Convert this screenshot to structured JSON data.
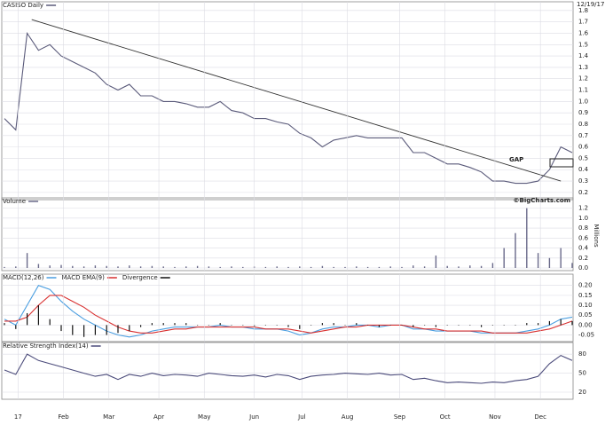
{
  "chart_data": [
    {
      "type": "line",
      "title": "CASISO Daily",
      "date": "12/19/17",
      "annotation": "GAP",
      "color": "#5a5a7a",
      "x": [
        0,
        5,
        10,
        15,
        20,
        25,
        30,
        35,
        40,
        45,
        50,
        55,
        60,
        65,
        70,
        75,
        80,
        85,
        90,
        95,
        100,
        105,
        110,
        115,
        120,
        125,
        130,
        135,
        140,
        145,
        150,
        155,
        160,
        165,
        170,
        175,
        180,
        185,
        190,
        195,
        200,
        205,
        210,
        215,
        220,
        225,
        230,
        235,
        240,
        245,
        250
      ],
      "values": [
        0.85,
        0.75,
        1.6,
        1.45,
        1.5,
        1.4,
        1.35,
        1.3,
        1.25,
        1.15,
        1.1,
        1.15,
        1.05,
        1.05,
        1.0,
        1.0,
        0.98,
        0.95,
        0.95,
        1.0,
        0.92,
        0.9,
        0.85,
        0.85,
        0.82,
        0.8,
        0.72,
        0.68,
        0.6,
        0.66,
        0.68,
        0.7,
        0.68,
        0.68,
        0.68,
        0.68,
        0.55,
        0.55,
        0.5,
        0.45,
        0.45,
        0.42,
        0.38,
        0.3,
        0.3,
        0.28,
        0.28,
        0.3,
        0.4,
        0.6,
        0.55
      ],
      "trendline": {
        "x": [
          12,
          245
        ],
        "values": [
          1.72,
          0.3
        ]
      },
      "xlim": [
        0,
        250
      ],
      "ylim": [
        0.16,
        1.83
      ],
      "yticks": [
        0.2,
        0.3,
        0.4,
        0.5,
        0.6,
        0.7,
        0.8,
        0.9,
        {
          "value": 1,
          "label": "1.0"
        },
        1.1,
        1.2,
        1.3,
        1.4,
        1.5,
        1.6,
        1.7,
        1.8
      ],
      "grid": true
    },
    {
      "type": "bar",
      "title": "Volume",
      "credit": "©BigCharts.com",
      "y_label": "Millions",
      "color": "#6a6a8a",
      "x": [
        0,
        5,
        10,
        15,
        20,
        25,
        30,
        35,
        40,
        45,
        50,
        55,
        60,
        65,
        70,
        75,
        80,
        85,
        90,
        95,
        100,
        105,
        110,
        115,
        120,
        125,
        130,
        135,
        140,
        145,
        150,
        155,
        160,
        165,
        170,
        175,
        180,
        185,
        190,
        195,
        200,
        205,
        210,
        215,
        220,
        225,
        230,
        235,
        240,
        245,
        250
      ],
      "values": [
        0.02,
        0.03,
        0.3,
        0.08,
        0.05,
        0.06,
        0.04,
        0.03,
        0.05,
        0.04,
        0.03,
        0.05,
        0.03,
        0.04,
        0.03,
        0.02,
        0.03,
        0.04,
        0.03,
        0.02,
        0.03,
        0.02,
        0.03,
        0.02,
        0.03,
        0.02,
        0.03,
        0.02,
        0.04,
        0.02,
        0.02,
        0.03,
        0.02,
        0.02,
        0.03,
        0.02,
        0.05,
        0.03,
        0.25,
        0.04,
        0.03,
        0.05,
        0.04,
        0.1,
        0.4,
        0.7,
        1.2,
        0.3,
        0.2,
        0.4,
        0.1
      ],
      "xlim": [
        0,
        250
      ],
      "ylim": [
        0,
        1.3
      ],
      "yticks": [
        {
          "value": 0,
          "label": "0.0"
        },
        0.2,
        0.4,
        0.6,
        0.8,
        {
          "value": 1,
          "label": "1.0"
        },
        1.2
      ],
      "grid": true
    },
    {
      "type": "line",
      "x": [
        0,
        5,
        10,
        15,
        20,
        25,
        30,
        35,
        40,
        45,
        50,
        55,
        60,
        65,
        70,
        75,
        80,
        85,
        90,
        95,
        100,
        105,
        110,
        115,
        120,
        125,
        130,
        135,
        140,
        145,
        150,
        155,
        160,
        165,
        170,
        175,
        180,
        185,
        190,
        195,
        200,
        205,
        210,
        215,
        220,
        225,
        230,
        235,
        240,
        245,
        250
      ],
      "series": [
        {
          "name": "MACD(12,26)",
          "color": "#4a9ee0",
          "values": [
            0.03,
            0.0,
            0.1,
            0.2,
            0.18,
            0.12,
            0.07,
            0.03,
            0.0,
            -0.03,
            -0.05,
            -0.06,
            -0.05,
            -0.03,
            -0.02,
            -0.01,
            -0.01,
            -0.01,
            -0.01,
            0.0,
            -0.01,
            -0.01,
            -0.02,
            -0.02,
            -0.02,
            -0.03,
            -0.05,
            -0.04,
            -0.02,
            -0.01,
            -0.01,
            0.0,
            0.0,
            -0.01,
            0.0,
            0.0,
            -0.02,
            -0.02,
            -0.03,
            -0.03,
            -0.03,
            -0.03,
            -0.04,
            -0.04,
            -0.04,
            -0.04,
            -0.03,
            -0.02,
            0.0,
            0.03,
            0.04
          ]
        },
        {
          "name": "MACD EMA(9)",
          "color": "#d83030",
          "values": [
            0.02,
            0.02,
            0.04,
            0.1,
            0.15,
            0.15,
            0.12,
            0.09,
            0.05,
            0.02,
            -0.01,
            -0.03,
            -0.04,
            -0.04,
            -0.03,
            -0.02,
            -0.02,
            -0.01,
            -0.01,
            -0.01,
            -0.01,
            -0.01,
            -0.01,
            -0.02,
            -0.02,
            -0.02,
            -0.03,
            -0.04,
            -0.03,
            -0.02,
            -0.01,
            -0.01,
            0.0,
            0.0,
            0.0,
            0.0,
            -0.01,
            -0.02,
            -0.02,
            -0.03,
            -0.03,
            -0.03,
            -0.03,
            -0.04,
            -0.04,
            -0.04,
            -0.04,
            -0.03,
            -0.02,
            0.0,
            0.02
          ]
        },
        {
          "name": "Divergence",
          "color": "#111111",
          "type": "bar",
          "values": [
            0.01,
            -0.02,
            0.06,
            0.1,
            0.03,
            -0.03,
            -0.05,
            -0.06,
            -0.05,
            -0.05,
            -0.04,
            -0.03,
            -0.01,
            0.01,
            0.01,
            0.01,
            0.01,
            0.0,
            0.0,
            0.01,
            0.0,
            0.0,
            -0.01,
            0.0,
            0.0,
            -0.01,
            -0.02,
            0.0,
            0.01,
            0.01,
            0.0,
            0.01,
            0.0,
            -0.01,
            0.0,
            0.0,
            -0.01,
            0.0,
            -0.01,
            0.0,
            0.0,
            0.0,
            -0.01,
            0.0,
            0.0,
            0.0,
            0.01,
            0.01,
            0.02,
            0.03,
            0.02
          ]
        }
      ],
      "xlim": [
        0,
        250
      ],
      "ylim": [
        -0.07,
        0.23
      ],
      "yticks": [
        -0.05,
        {
          "value": 0,
          "label": "0.00"
        },
        0.05,
        {
          "value": 0.1,
          "label": "0.10"
        },
        0.15,
        {
          "value": 0.2,
          "label": "0.20"
        }
      ],
      "grid": true
    },
    {
      "type": "line",
      "title": "Relative Strength Index(14)",
      "color": "#4a4a7a",
      "x": [
        0,
        5,
        10,
        15,
        20,
        25,
        30,
        35,
        40,
        45,
        50,
        55,
        60,
        65,
        70,
        75,
        80,
        85,
        90,
        95,
        100,
        105,
        110,
        115,
        120,
        125,
        130,
        135,
        140,
        145,
        150,
        155,
        160,
        165,
        170,
        175,
        180,
        185,
        190,
        195,
        200,
        205,
        210,
        215,
        220,
        225,
        230,
        235,
        240,
        245,
        250
      ],
      "values": [
        55,
        48,
        80,
        70,
        65,
        60,
        55,
        50,
        45,
        48,
        40,
        48,
        45,
        50,
        46,
        48,
        47,
        45,
        50,
        48,
        46,
        45,
        47,
        44,
        48,
        46,
        40,
        45,
        47,
        48,
        50,
        49,
        48,
        50,
        47,
        48,
        40,
        42,
        38,
        35,
        36,
        35,
        34,
        36,
        35,
        38,
        40,
        45,
        65,
        78,
        70
      ],
      "xlim": [
        0,
        250
      ],
      "ylim": [
        13,
        90
      ],
      "yticks": [
        20,
        50,
        80
      ],
      "xticks": [
        {
          "value": 6,
          "label": "17"
        },
        {
          "value": 26,
          "label": "Feb"
        },
        {
          "value": 46,
          "label": "Mar"
        },
        {
          "value": 68,
          "label": "Apr"
        },
        {
          "value": 88,
          "label": "May"
        },
        {
          "value": 110,
          "label": "Jun"
        },
        {
          "value": 131,
          "label": "Jul"
        },
        {
          "value": 151,
          "label": "Aug"
        },
        {
          "value": 174,
          "label": "Sep"
        },
        {
          "value": 194,
          "label": "Oct"
        },
        {
          "value": 216,
          "label": "Nov"
        },
        {
          "value": 236,
          "label": "Dec"
        }
      ],
      "grid": true
    }
  ]
}
